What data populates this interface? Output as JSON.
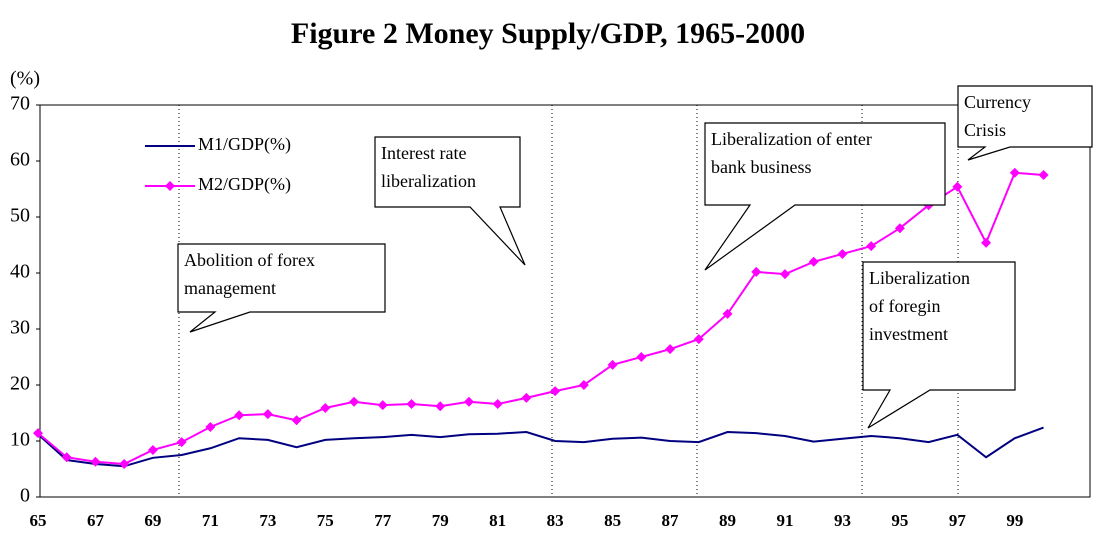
{
  "chart_data": {
    "type": "line",
    "title": "Figure 2   Money Supply/GDP, 1965-2000",
    "y_unit": "(%)",
    "categories": [
      "65",
      null,
      "67",
      null,
      "69",
      null,
      "71",
      null,
      "73",
      null,
      "75",
      null,
      "77",
      null,
      "79",
      null,
      "81",
      null,
      "83",
      null,
      "85",
      null,
      "87",
      null,
      "89",
      null,
      "91",
      null,
      "93",
      null,
      "95",
      null,
      "97",
      null,
      "99",
      null
    ],
    "series": [
      {
        "name": "M1/GDP(%)",
        "color": "#000080",
        "values": [
          11.2,
          6.6,
          5.9,
          5.5,
          7.0,
          7.5,
          8.7,
          10.5,
          10.2,
          8.9,
          10.2,
          10.5,
          10.7,
          11.1,
          10.7,
          11.2,
          11.3,
          11.6,
          10.0,
          9.8,
          10.4,
          10.6,
          10.0,
          9.8,
          11.6,
          11.4,
          10.9,
          9.9,
          10.4,
          10.9,
          10.5,
          9.8,
          11.1,
          7.1,
          10.5,
          12.4
        ]
      },
      {
        "name": "M2/GDP(%)",
        "color": "#ff00ff",
        "values": [
          11.4,
          7.1,
          6.3,
          5.9,
          8.4,
          9.8,
          12.5,
          14.6,
          14.8,
          13.7,
          15.9,
          17.0,
          16.4,
          16.6,
          16.2,
          17.0,
          16.6,
          17.7,
          18.9,
          20.0,
          23.6,
          25.0,
          26.4,
          28.2,
          32.7,
          40.2,
          39.8,
          42.0,
          43.4,
          44.8,
          48.0,
          52.1,
          55.4,
          45.4,
          57.9,
          57.5
        ]
      }
    ],
    "ylim": [
      0,
      70
    ],
    "yticks": [
      0,
      10,
      20,
      30,
      40,
      50,
      60,
      70
    ],
    "legend": "upper left",
    "annotations": [
      {
        "text": [
          "Abolition of forex",
          "management"
        ]
      },
      {
        "text": [
          "Interest rate",
          "liberalization"
        ]
      },
      {
        "text": [
          "Liberalization of enter",
          "bank business"
        ]
      },
      {
        "text": [
          "Liberalization",
          "of foregin",
          "investment"
        ]
      },
      {
        "text": [
          "Currency",
          "Crisis"
        ]
      }
    ]
  }
}
